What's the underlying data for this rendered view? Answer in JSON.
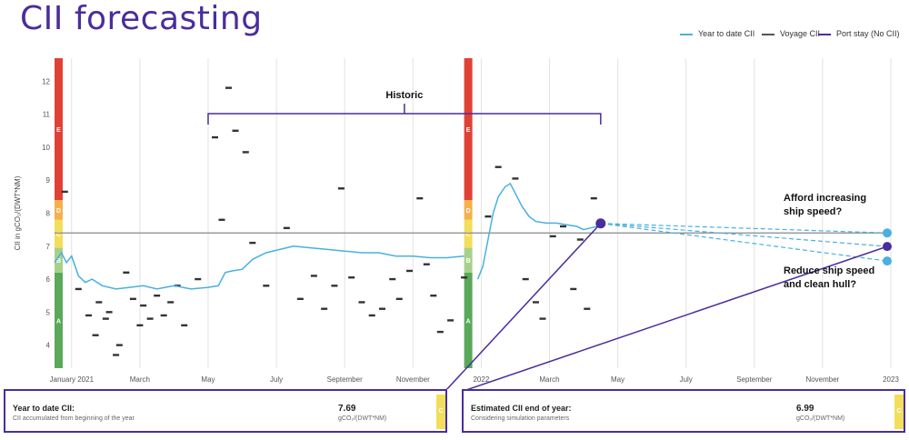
{
  "title": "CII forecasting",
  "legend": [
    {
      "label": "Year to date CII",
      "color": "#49b0e0"
    },
    {
      "label": "Voyage CII",
      "color": "#555555"
    },
    {
      "label": "Port stay (No CII)",
      "color": "#4a2d9c"
    }
  ],
  "chart_data": {
    "type": "line",
    "ylabel": "CII in gCO₂/(DWT*NM)",
    "ylim": [
      3.3,
      12.7
    ],
    "yticks": [
      4,
      5,
      6,
      7,
      8,
      9,
      10,
      11,
      12
    ],
    "xlim": [
      0,
      24.5
    ],
    "xticks": [
      {
        "x": 0.5,
        "label": "January 2021"
      },
      {
        "x": 2.5,
        "label": "March"
      },
      {
        "x": 4.5,
        "label": "May"
      },
      {
        "x": 6.5,
        "label": "July"
      },
      {
        "x": 8.5,
        "label": "September"
      },
      {
        "x": 10.5,
        "label": "November"
      },
      {
        "x": 12.5,
        "label": "2022"
      },
      {
        "x": 14.5,
        "label": "March"
      },
      {
        "x": 16.5,
        "label": "May"
      },
      {
        "x": 18.5,
        "label": "July"
      },
      {
        "x": 20.5,
        "label": "September"
      },
      {
        "x": 22.5,
        "label": "November"
      },
      {
        "x": 24.5,
        "label": "2023"
      }
    ],
    "rating_bands": [
      {
        "grade": "A",
        "from": 3.3,
        "to": 6.2,
        "color": "#5aa85a"
      },
      {
        "grade": "B",
        "from": 6.2,
        "to": 6.95,
        "color": "#a8d08d"
      },
      {
        "grade": "C",
        "from": 6.95,
        "to": 7.8,
        "color": "#f2de5b"
      },
      {
        "grade": "D",
        "from": 7.8,
        "to": 8.4,
        "color": "#f5b14c"
      },
      {
        "grade": "E",
        "from": 8.4,
        "to": 12.7,
        "color": "#e04135"
      }
    ],
    "reference_line": 7.4,
    "year_to_date_2021": [
      [
        0.0,
        6.5
      ],
      [
        0.2,
        6.8
      ],
      [
        0.35,
        6.5
      ],
      [
        0.5,
        6.7
      ],
      [
        0.7,
        6.1
      ],
      [
        0.9,
        5.9
      ],
      [
        1.1,
        6.0
      ],
      [
        1.4,
        5.8
      ],
      [
        1.8,
        5.7
      ],
      [
        2.2,
        5.75
      ],
      [
        2.6,
        5.8
      ],
      [
        3.0,
        5.7
      ],
      [
        3.5,
        5.8
      ],
      [
        4.0,
        5.7
      ],
      [
        4.5,
        5.75
      ],
      [
        4.8,
        5.8
      ],
      [
        5.0,
        6.2
      ],
      [
        5.2,
        6.25
      ],
      [
        5.5,
        6.3
      ],
      [
        5.8,
        6.6
      ],
      [
        6.2,
        6.8
      ],
      [
        6.6,
        6.9
      ],
      [
        7.0,
        7.0
      ],
      [
        7.5,
        6.95
      ],
      [
        8.0,
        6.9
      ],
      [
        8.5,
        6.85
      ],
      [
        9.0,
        6.8
      ],
      [
        9.5,
        6.8
      ],
      [
        10.0,
        6.7
      ],
      [
        10.5,
        6.7
      ],
      [
        11.0,
        6.65
      ],
      [
        11.5,
        6.65
      ],
      [
        12.0,
        6.7
      ]
    ],
    "year_to_date_2022": [
      [
        12.4,
        6.0
      ],
      [
        12.55,
        6.4
      ],
      [
        12.7,
        7.2
      ],
      [
        12.85,
        8.0
      ],
      [
        13.0,
        8.5
      ],
      [
        13.2,
        8.8
      ],
      [
        13.35,
        8.9
      ],
      [
        13.5,
        8.6
      ],
      [
        13.7,
        8.2
      ],
      [
        13.9,
        7.9
      ],
      [
        14.1,
        7.75
      ],
      [
        14.4,
        7.7
      ],
      [
        14.7,
        7.7
      ],
      [
        15.0,
        7.65
      ],
      [
        15.3,
        7.6
      ],
      [
        15.5,
        7.5
      ],
      [
        15.7,
        7.55
      ],
      [
        15.9,
        7.6
      ],
      [
        16.0,
        7.69
      ]
    ],
    "voyage_dashes": [
      [
        0.3,
        8.65
      ],
      [
        0.7,
        5.7
      ],
      [
        1.0,
        4.9
      ],
      [
        1.2,
        4.3
      ],
      [
        1.3,
        5.3
      ],
      [
        1.5,
        4.8
      ],
      [
        1.6,
        5.0
      ],
      [
        1.8,
        3.7
      ],
      [
        1.9,
        4.0
      ],
      [
        2.1,
        6.2
      ],
      [
        2.3,
        5.4
      ],
      [
        2.5,
        4.6
      ],
      [
        2.6,
        5.2
      ],
      [
        2.8,
        4.8
      ],
      [
        3.0,
        5.5
      ],
      [
        3.2,
        4.9
      ],
      [
        3.4,
        5.3
      ],
      [
        3.6,
        5.8
      ],
      [
        3.8,
        4.6
      ],
      [
        4.2,
        6.0
      ],
      [
        4.7,
        10.3
      ],
      [
        4.9,
        7.8
      ],
      [
        5.1,
        11.8
      ],
      [
        5.3,
        10.5
      ],
      [
        5.6,
        9.85
      ],
      [
        5.8,
        7.1
      ],
      [
        6.2,
        5.8
      ],
      [
        6.8,
        7.55
      ],
      [
        7.2,
        5.4
      ],
      [
        7.6,
        6.1
      ],
      [
        7.9,
        5.1
      ],
      [
        8.2,
        5.8
      ],
      [
        8.4,
        8.75
      ],
      [
        8.7,
        6.05
      ],
      [
        9.0,
        5.3
      ],
      [
        9.3,
        4.9
      ],
      [
        9.6,
        5.1
      ],
      [
        9.9,
        6.0
      ],
      [
        10.1,
        5.4
      ],
      [
        10.4,
        6.25
      ],
      [
        10.7,
        8.45
      ],
      [
        10.9,
        6.45
      ],
      [
        11.1,
        5.5
      ],
      [
        11.3,
        4.4
      ],
      [
        11.6,
        4.75
      ],
      [
        12.0,
        6.05
      ],
      [
        12.7,
        7.9
      ],
      [
        13.0,
        9.4
      ],
      [
        13.5,
        9.05
      ],
      [
        13.8,
        6.0
      ],
      [
        14.1,
        5.3
      ],
      [
        14.3,
        4.8
      ],
      [
        14.6,
        7.3
      ],
      [
        14.9,
        7.6
      ],
      [
        15.2,
        5.7
      ],
      [
        15.4,
        7.2
      ],
      [
        15.6,
        5.1
      ],
      [
        15.8,
        8.45
      ]
    ],
    "port_stay_dot": [
      16.0,
      7.69
    ],
    "scenario_lines": [
      {
        "to": [
          24.5,
          7.4
        ],
        "color": "#49b0e0"
      },
      {
        "to": [
          24.5,
          6.99
        ],
        "color": "#4a2d9c"
      },
      {
        "to": [
          24.5,
          6.55
        ],
        "color": "#49b0e0"
      }
    ],
    "annotation": "Historic",
    "annotation_range": [
      4.5,
      16.0
    ]
  },
  "questions": {
    "q1_line1": "Afford increasing",
    "q1_line2": "ship speed?",
    "q2_line1": "Reduce ship speed",
    "q2_line2": "and clean hull?"
  },
  "cards": {
    "ytd": {
      "label": "Year to date CII:",
      "sub": "CII accumulated from beginning of the year",
      "value": "7.69",
      "unit": "gCO₂/(DWT*NM)",
      "grade": "C"
    },
    "eoy": {
      "label": "Estimated CII end of year:",
      "sub": "Considering simulation parameters",
      "value": "6.99",
      "unit": "gCO₂/(DWT*NM)",
      "grade": "C"
    }
  }
}
